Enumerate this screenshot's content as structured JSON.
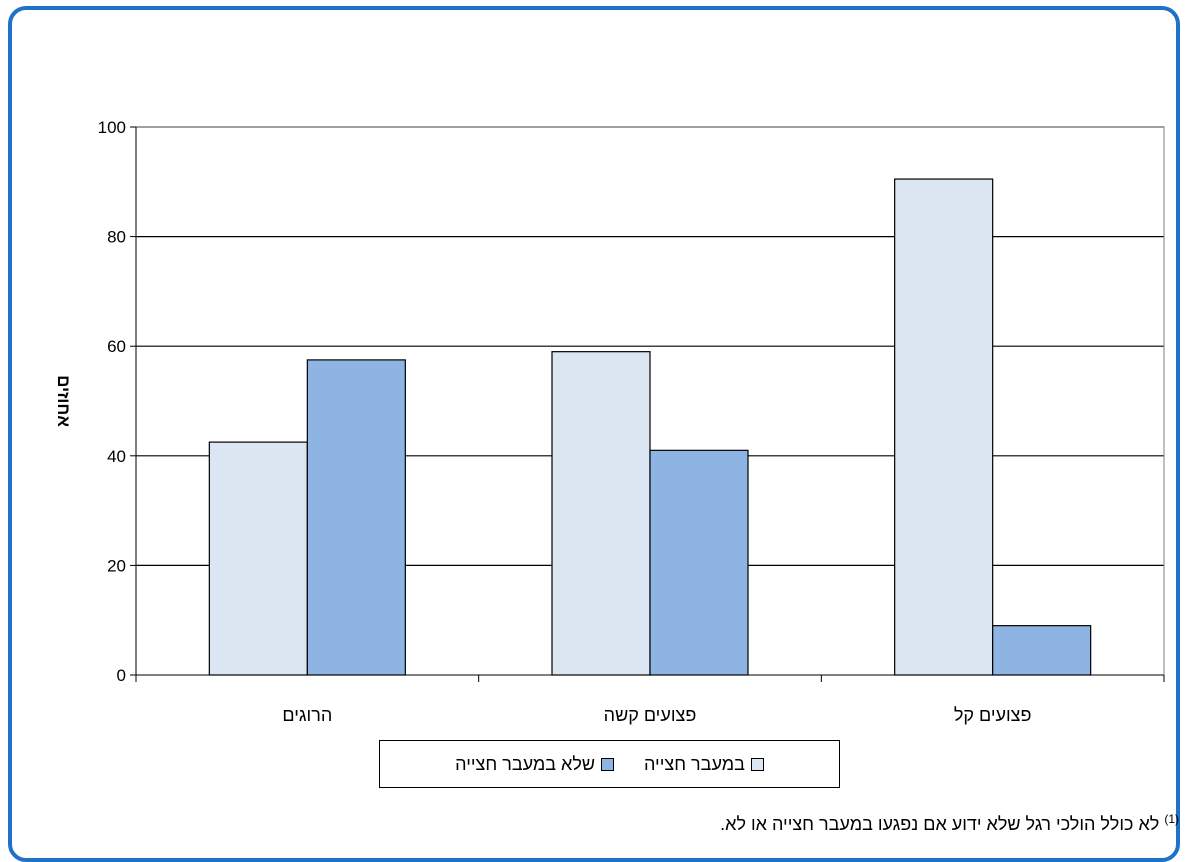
{
  "chart_data": {
    "type": "bar",
    "categories": [
      "הרוגים",
      "פצועים קשה",
      "פצועים קל"
    ],
    "series": [
      {
        "name": "במעבר חצייה",
        "values": [
          42.5,
          59,
          90.5
        ],
        "color": "#dce6f2"
      },
      {
        "name": "שלא במעבר חצייה",
        "values": [
          57.5,
          41,
          9
        ],
        "color": "#8eb4e3"
      }
    ],
    "ylabel": "אחוזים",
    "ylim": [
      0,
      100
    ],
    "yticks": [
      0,
      20,
      40,
      60,
      80,
      100
    ],
    "grid": true,
    "legend_position": "bottom"
  },
  "footnote": {
    "marker": "(1)",
    "text": "לא כולל הולכי רגל שלא ידוע אם נפגעו במעבר חצייה או לא."
  },
  "colors": {
    "frame": "#1f72c8"
  }
}
